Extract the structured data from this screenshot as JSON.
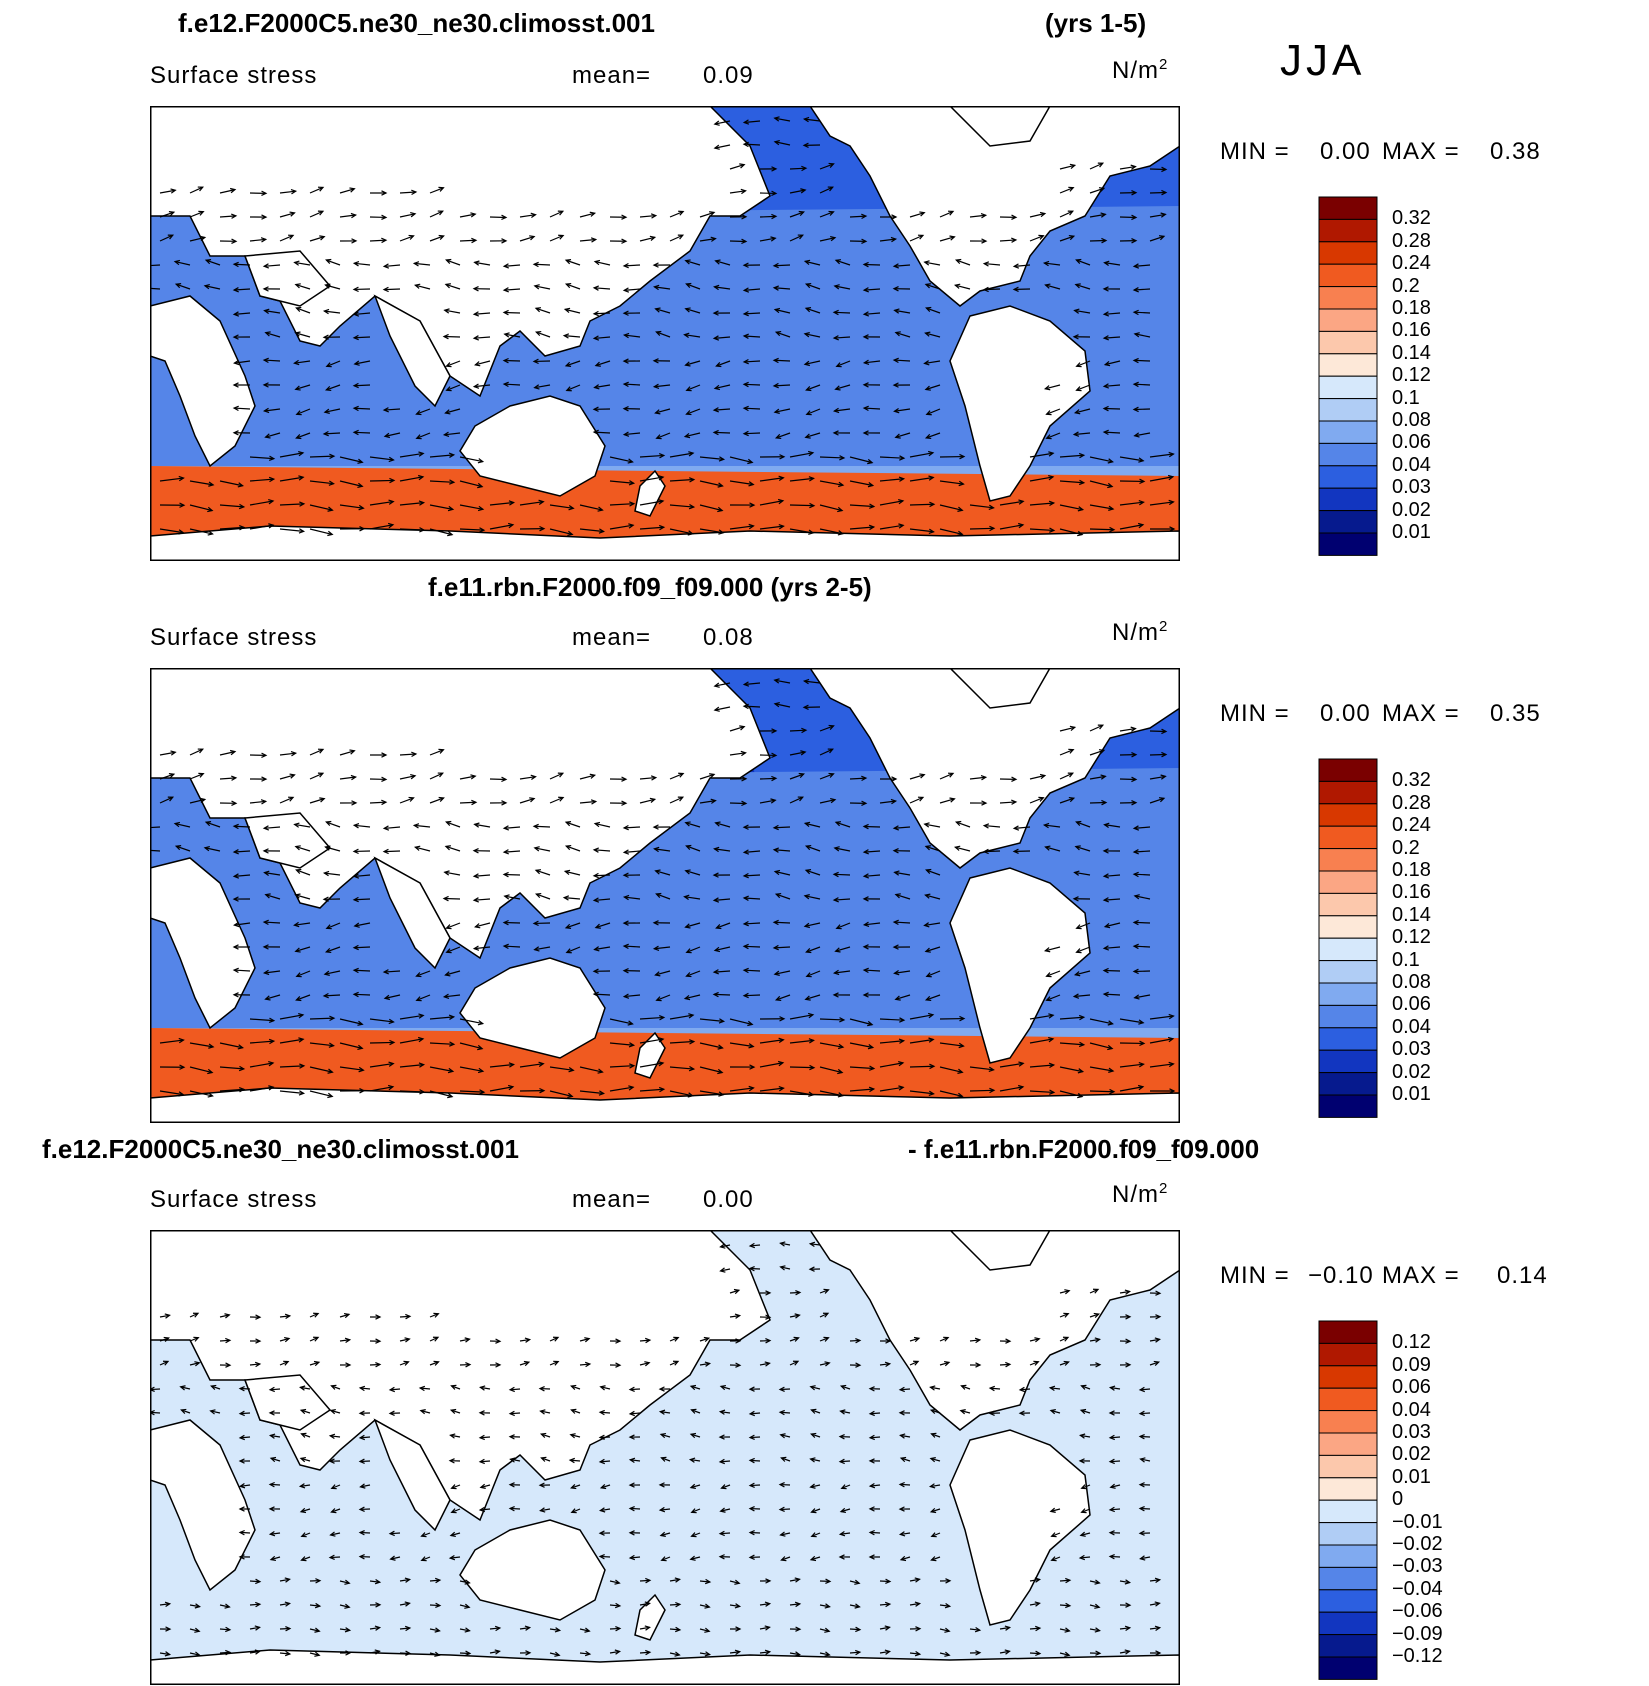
{
  "season": "JJA",
  "colors": {
    "land": "#ffffff",
    "coast": "#000000",
    "arrow": "#000000"
  },
  "panels": [
    {
      "title_left": "f.e12.F2000C5.ne30_ne30.climosst.001",
      "title_right": "(yrs 1-5)",
      "variable": "Surface stress",
      "mean_label": "mean=",
      "mean_value": "0.09",
      "units": "N/m",
      "units_sup": "2",
      "min_label": "MIN =",
      "min_value": "0.00",
      "max_label": "MAX =",
      "max_value": "0.38",
      "colorbar_labels": [
        "0.32",
        "0.28",
        "0.24",
        "0.2",
        "0.18",
        "0.16",
        "0.14",
        "0.12",
        "0.1",
        "0.08",
        "0.06",
        "0.04",
        "0.03",
        "0.02",
        "0.01"
      ],
      "colorbar_colors": [
        "#7a0000",
        "#b01800",
        "#d83800",
        "#f05a20",
        "#f88050",
        "#fba684",
        "#fcc8ac",
        "#fde8d8",
        "#d6e8fb",
        "#b0cdf5",
        "#80aaf0",
        "#5585e8",
        "#2c5fe0",
        "#1236c0",
        "#061a8e",
        "#000070"
      ]
    },
    {
      "title_left": "f.e11.rbn.F2000.f09_f09.000 (yrs 2-5)",
      "title_right": "",
      "variable": "Surface stress",
      "mean_label": "mean=",
      "mean_value": "0.08",
      "units": "N/m",
      "units_sup": "2",
      "min_label": "MIN =",
      "min_value": "0.00",
      "max_label": "MAX =",
      "max_value": "0.35",
      "colorbar_labels": [
        "0.32",
        "0.28",
        "0.24",
        "0.2",
        "0.18",
        "0.16",
        "0.14",
        "0.12",
        "0.1",
        "0.08",
        "0.06",
        "0.04",
        "0.03",
        "0.02",
        "0.01"
      ],
      "colorbar_colors": [
        "#7a0000",
        "#b01800",
        "#d83800",
        "#f05a20",
        "#f88050",
        "#fba684",
        "#fcc8ac",
        "#fde8d8",
        "#d6e8fb",
        "#b0cdf5",
        "#80aaf0",
        "#5585e8",
        "#2c5fe0",
        "#1236c0",
        "#061a8e",
        "#000070"
      ]
    },
    {
      "title_left": "f.e12.F2000C5.ne30_ne30.climosst.001",
      "title_right": "- f.e11.rbn.F2000.f09_f09.000",
      "variable": "Surface stress",
      "mean_label": "mean=",
      "mean_value": "0.00",
      "units": "N/m",
      "units_sup": "2",
      "min_label": "MIN =",
      "min_value": "−0.10",
      "max_label": "MAX =",
      "max_value": "0.14",
      "colorbar_labels": [
        "0.12",
        "0.09",
        "0.06",
        "0.04",
        "0.03",
        "0.02",
        "0.01",
        "0",
        "−0.01",
        "−0.02",
        "−0.03",
        "−0.04",
        "−0.06",
        "−0.09",
        "−0.12"
      ],
      "colorbar_colors": [
        "#7a0000",
        "#b01800",
        "#d83800",
        "#f05a20",
        "#f88050",
        "#fba684",
        "#fcc8ac",
        "#fde8d8",
        "#d6e8fb",
        "#b0cdf5",
        "#80aaf0",
        "#5585e8",
        "#2c5fe0",
        "#1236c0",
        "#061a8e",
        "#000070"
      ]
    }
  ]
}
